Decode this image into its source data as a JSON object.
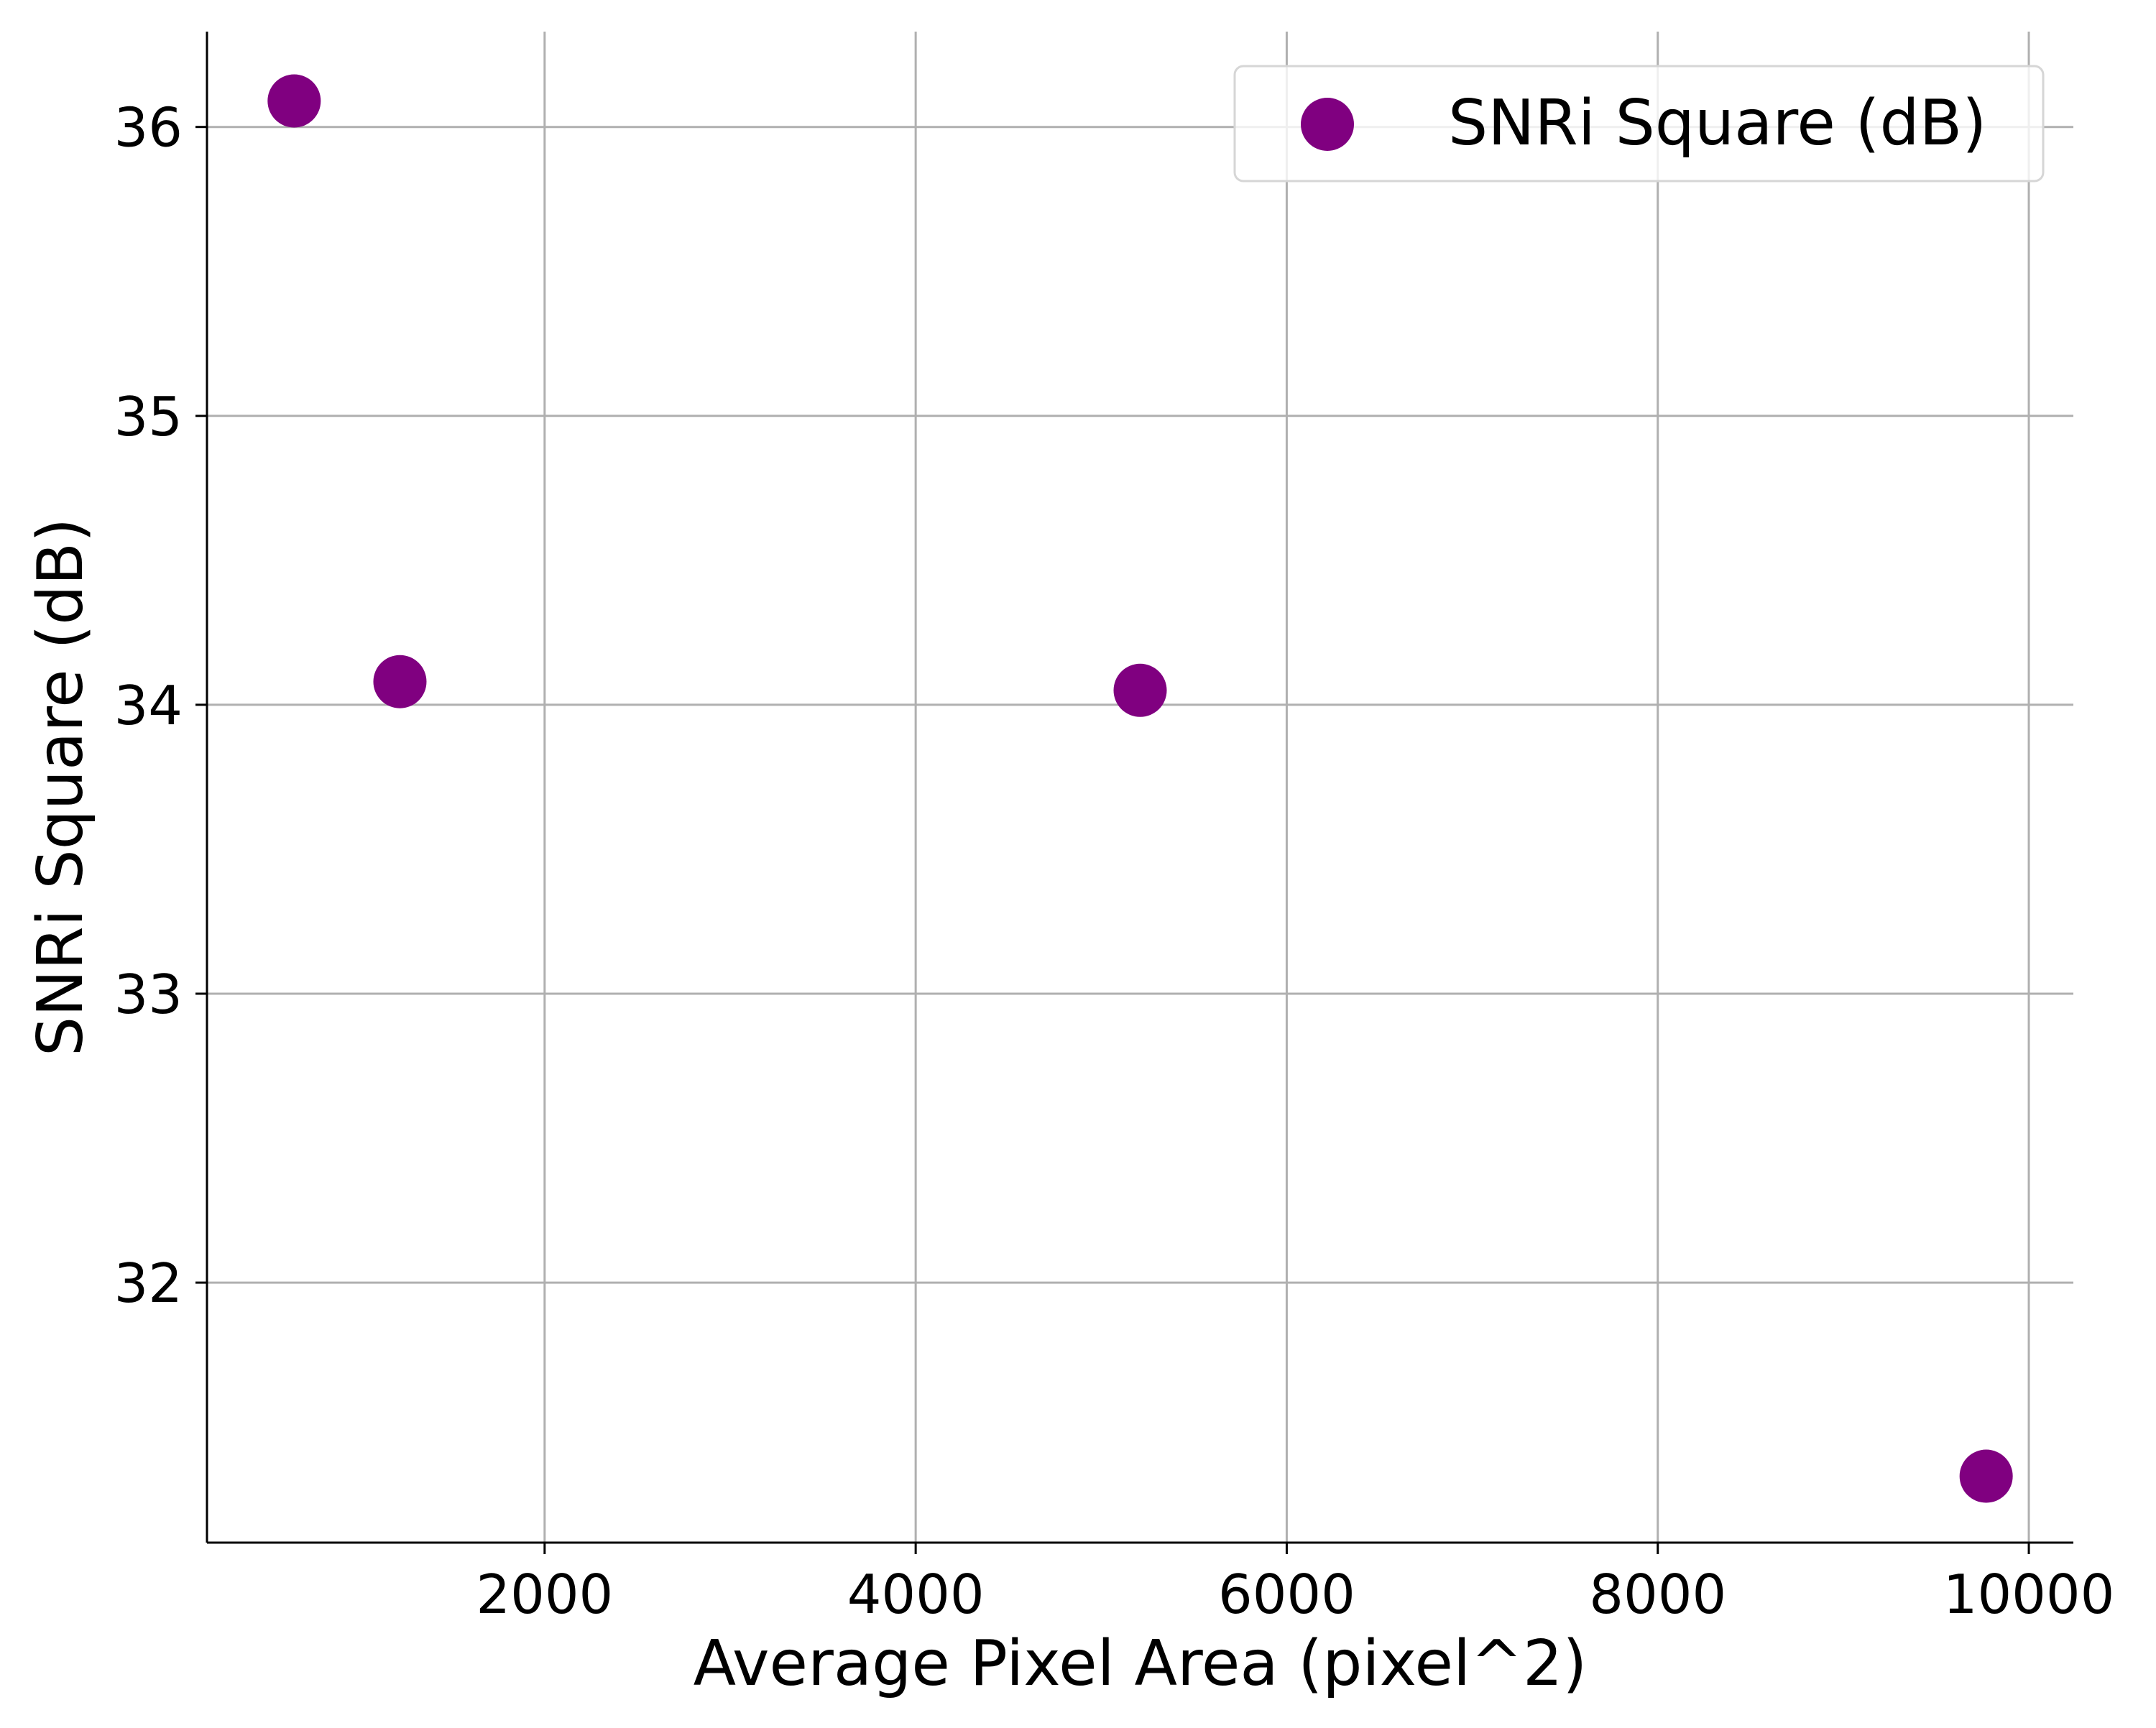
{
  "chart_data": {
    "type": "scatter",
    "title": "",
    "xlabel": "Average Pixel Area (pixel^2)",
    "ylabel": "SNRi Square (dB)",
    "xlim": [
      180,
      10240
    ],
    "ylim": [
      31.1,
      36.33
    ],
    "xticks": [
      2000,
      4000,
      6000,
      8000,
      10000
    ],
    "yticks": [
      32,
      33,
      34,
      35,
      36
    ],
    "grid": true,
    "legend_position": "top-right",
    "series": [
      {
        "name": "SNRi Square (dB)",
        "color": "#800080",
        "points": [
          {
            "x": 650,
            "y": 36.09
          },
          {
            "x": 1220,
            "y": 34.08
          },
          {
            "x": 5210,
            "y": 34.05
          },
          {
            "x": 9770,
            "y": 31.33
          }
        ]
      }
    ]
  }
}
